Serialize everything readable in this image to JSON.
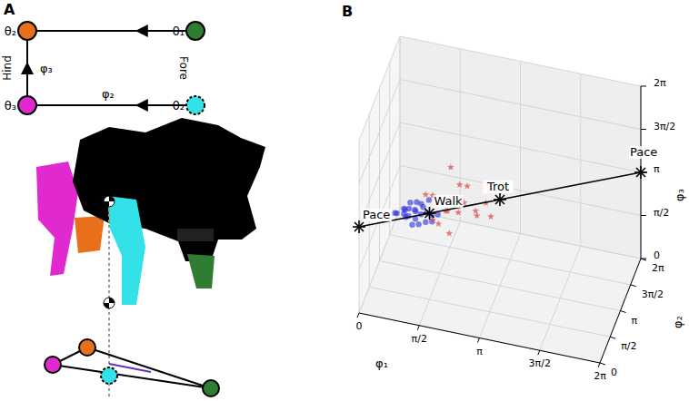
{
  "panel_labels": [
    "A",
    "B"
  ],
  "panel_a": {
    "nodes": [
      {
        "label": "θ₂",
        "color": "#e8701a"
      },
      {
        "label": "θ₁",
        "color": "#2e7d32"
      },
      {
        "label": "θ₃",
        "color": "#e02ad0"
      },
      {
        "label": "θ₂",
        "color": "#33e1e8",
        "dashed": true
      }
    ],
    "edges": [
      {
        "from": 1,
        "to": 0
      },
      {
        "from": 2,
        "to": 0,
        "label": "φ₃"
      },
      {
        "from": 3,
        "to": 2,
        "label": "φ₂"
      }
    ],
    "side_labels": {
      "left": "Hind",
      "right": "Fore"
    }
  },
  "chart_data": {
    "type": "scatter3d",
    "xlabel": "φ₁",
    "ylabel": "φ₂",
    "zlabel": "φ₃",
    "xlim": [
      0,
      6.2832
    ],
    "ylim": [
      0,
      6.2832
    ],
    "zlim": [
      0,
      6.2832
    ],
    "xticks": [
      0,
      {
        "value": 1.5708,
        "label": "π/2"
      },
      {
        "value": 3.1416,
        "label": "π"
      },
      {
        "value": 4.7124,
        "label": "3π/2"
      },
      {
        "value": 6.2832,
        "label": "2π"
      }
    ],
    "yticks": [
      0,
      {
        "value": 1.5708,
        "label": "π/2"
      },
      {
        "value": 3.1416,
        "label": "π"
      },
      {
        "value": 4.7124,
        "label": "3π/2"
      },
      {
        "value": 6.2832,
        "label": "2π"
      }
    ],
    "zticks": [
      0,
      {
        "value": 1.5708,
        "label": "π/2"
      },
      {
        "value": 3.1416,
        "label": "π"
      },
      {
        "value": 4.7124,
        "label": "3π/2"
      },
      {
        "value": 6.2832,
        "label": "2π"
      }
    ],
    "grid": true,
    "series": [
      {
        "color": "#2b2be0",
        "marker": "circle",
        "values": [
          [
            1.2,
            1.5,
            3.2
          ],
          [
            1.0,
            1.3,
            3.0
          ],
          [
            1.4,
            1.6,
            3.3
          ],
          [
            1.1,
            1.2,
            3.4
          ],
          [
            1.5,
            1.4,
            2.9
          ],
          [
            0.9,
            1.6,
            3.1
          ],
          [
            1.3,
            1.0,
            3.2
          ],
          [
            1.6,
            1.7,
            3.0
          ],
          [
            1.2,
            1.8,
            3.3
          ],
          [
            0.8,
            1.1,
            3.2
          ],
          [
            1.4,
            1.3,
            3.6
          ],
          [
            1.0,
            1.7,
            2.8
          ],
          [
            1.7,
            1.2,
            3.1
          ],
          [
            1.3,
            1.5,
            2.7
          ],
          [
            1.1,
            1.4,
            3.5
          ],
          [
            0.7,
            1.4,
            3.0
          ],
          [
            1.5,
            1.9,
            3.4
          ],
          [
            1.2,
            1.1,
            2.9
          ],
          [
            1.8,
            1.5,
            3.2
          ],
          [
            1.0,
            1.0,
            3.3
          ],
          [
            1.35,
            1.55,
            3.05
          ],
          [
            1.25,
            1.35,
            3.25
          ],
          [
            0.95,
            1.45,
            3.15
          ],
          [
            1.55,
            1.25,
            3.35
          ]
        ]
      },
      {
        "color": "#e04848",
        "marker": "star",
        "values": [
          [
            2.0,
            1.8,
            3.2
          ],
          [
            2.4,
            2.0,
            3.5
          ],
          [
            1.8,
            1.6,
            2.8
          ],
          [
            2.7,
            2.2,
            3.0
          ],
          [
            2.2,
            2.5,
            3.8
          ],
          [
            1.6,
            1.9,
            3.6
          ],
          [
            2.9,
            2.4,
            3.4
          ],
          [
            2.1,
            1.5,
            2.6
          ],
          [
            2.5,
            1.9,
            4.2
          ],
          [
            1.9,
            2.1,
            3.0
          ],
          [
            2.3,
            1.7,
            3.3
          ],
          [
            1.5,
            1.4,
            3.9
          ],
          [
            2.6,
            2.6,
            2.9
          ],
          [
            2.0,
            2.3,
            4.5
          ],
          [
            3.1,
            2.0,
            3.2
          ],
          [
            1.7,
            1.3,
            3.1
          ]
        ]
      }
    ],
    "gaits": {
      "color": "#000000",
      "marker": "asterisk",
      "points": [
        {
          "text": "Pace",
          "value": [
            0,
            0,
            3.1416
          ]
        },
        {
          "text": "Walk",
          "value": [
            1.5708,
            1.5708,
            3.1416
          ]
        },
        {
          "text": "Trot",
          "value": [
            3.1416,
            3.1416,
            3.1416
          ]
        },
        {
          "text": "Pace",
          "value": [
            6.2832,
            6.2832,
            3.1416
          ]
        }
      ]
    }
  }
}
